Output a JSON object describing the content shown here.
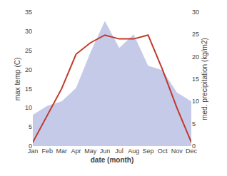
{
  "chart_data": {
    "type": "line",
    "categories": [
      "Jan",
      "Feb",
      "Mar",
      "Apr",
      "May",
      "Jun",
      "Jul",
      "Aug",
      "Sep",
      "Oct",
      "Nov",
      "Dec"
    ],
    "xlabel": "date (month)",
    "ylabel": "max temp (C)",
    "y2label": "med. precipitation (kg/m2)",
    "series": [
      {
        "type": "area",
        "axis": "y2",
        "color": "#c5cae9",
        "values": [
          7,
          9,
          10,
          13,
          21,
          28,
          22,
          25,
          18,
          17,
          12,
          10
        ]
      },
      {
        "type": "line",
        "color": "#c0392b",
        "values": [
          1,
          8,
          15,
          24,
          27,
          29,
          28,
          28,
          29,
          20,
          10,
          1
        ]
      }
    ],
    "ylim": [
      0,
      35
    ],
    "yticks": [
      0,
      5,
      10,
      15,
      20,
      25,
      30,
      35
    ],
    "y2lim": [
      0,
      30
    ],
    "y2ticks": [
      0,
      5,
      10,
      15,
      20,
      25,
      30
    ],
    "grid": false
  }
}
